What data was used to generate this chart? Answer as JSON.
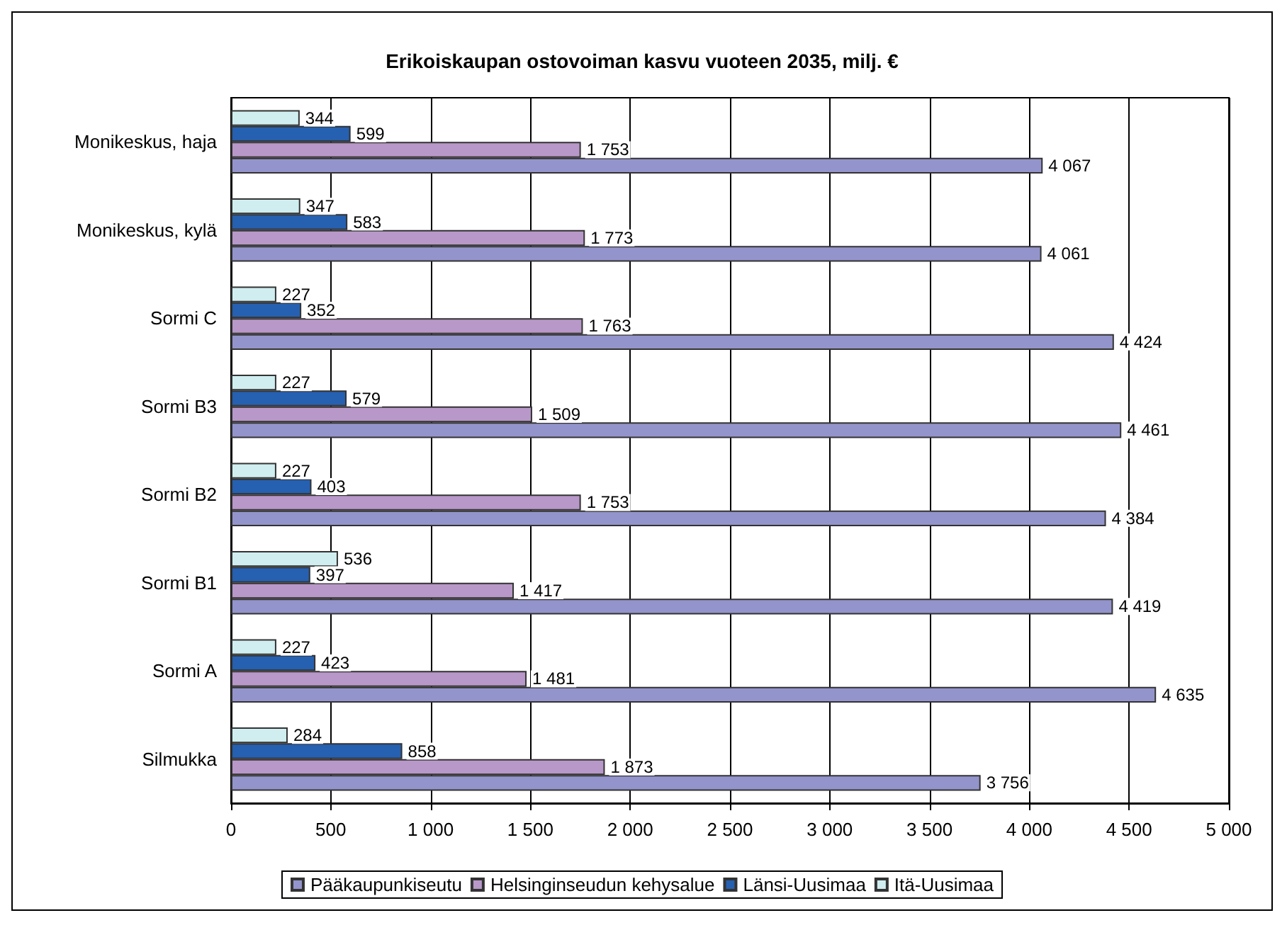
{
  "chart_data": {
    "type": "bar",
    "orientation": "horizontal",
    "title": "Erikoiskaupan ostovoiman kasvu vuoteen 2035, milj. €",
    "categories": [
      "Monikeskus, haja",
      "Monikeskus, kylä",
      "Sormi C",
      "Sormi B3",
      "Sormi B2",
      "Sormi B1",
      "Sormi A",
      "Silmukka"
    ],
    "series": [
      {
        "name": "Pääkaupunkiseutu",
        "color": "#9494cc",
        "values": [
          4067,
          4061,
          4424,
          4461,
          4384,
          4419,
          4635,
          3756
        ],
        "value_labels": [
          "4 067",
          "4 061",
          "4 424",
          "4 461",
          "4 384",
          "4 419",
          "4 635",
          "3 756"
        ]
      },
      {
        "name": "Helsinginseudun kehysalue",
        "color": "#b898c8",
        "values": [
          1753,
          1773,
          1763,
          1509,
          1753,
          1417,
          1481,
          1873
        ],
        "value_labels": [
          "1 753",
          "1 773",
          "1 763",
          "1 509",
          "1 753",
          "1 417",
          "1 481",
          "1 873"
        ]
      },
      {
        "name": "Länsi-Uusimaa",
        "color": "#2660b0",
        "values": [
          599,
          583,
          352,
          579,
          403,
          397,
          423,
          858
        ],
        "value_labels": [
          "599",
          "583",
          "352",
          "579",
          "403",
          "397",
          "423",
          "858"
        ]
      },
      {
        "name": "Itä-Uusimaa",
        "color": "#d0eef0",
        "values": [
          344,
          347,
          227,
          227,
          227,
          536,
          227,
          284
        ],
        "value_labels": [
          "344",
          "347",
          "227",
          "227",
          "227",
          "536",
          "227",
          "284"
        ]
      }
    ],
    "xlim": [
      0,
      5000
    ],
    "xticks": [
      0,
      500,
      {
        "value": 1000,
        "label": "1 000"
      },
      {
        "value": 1500,
        "label": "1 500"
      },
      {
        "value": 2000,
        "label": "2 000"
      },
      {
        "value": 2500,
        "label": "2 500"
      },
      {
        "value": 3000,
        "label": "3 000"
      },
      {
        "value": 3500,
        "label": "3 500"
      },
      {
        "value": 4000,
        "label": "4 000"
      },
      {
        "value": 4500,
        "label": "4 500"
      },
      {
        "value": 5000,
        "label": "5 000"
      }
    ],
    "grid": "x",
    "legend": "bottom"
  }
}
